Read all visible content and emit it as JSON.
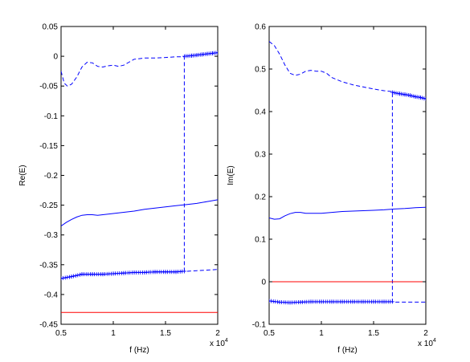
{
  "chart_data": [
    {
      "type": "line",
      "xlabel": "f (Hz)",
      "ylabel": "Re(E)",
      "x_exponent": "x 10^4",
      "xlim": [
        5000,
        20000
      ],
      "ylim": [
        -0.45,
        0.05
      ],
      "xticks": [
        0.5,
        1,
        1.5,
        2
      ],
      "yticks": [
        -0.45,
        -0.4,
        -0.35,
        -0.3,
        -0.25,
        -0.2,
        -0.15,
        -0.1,
        -0.05,
        0,
        0.05
      ],
      "ytick_labels": [
        "-0.45",
        "-0.4",
        "-0.35",
        "-0.3",
        "-0.25",
        "-0.2",
        "-0.15",
        "-0.1",
        "-0.05",
        "0",
        "0.05"
      ],
      "grid": false,
      "series": [
        {
          "style": "solid",
          "color": "#0000ff",
          "x": [
            5000,
            5500,
            6000,
            6500,
            7000,
            7500,
            8000,
            8500,
            9000,
            10000,
            11000,
            12000,
            13000,
            14000,
            15000,
            16000,
            17000,
            18000,
            19000,
            20000
          ],
          "y": [
            -0.285,
            -0.279,
            -0.274,
            -0.27,
            -0.267,
            -0.266,
            -0.266,
            -0.267,
            -0.266,
            -0.264,
            -0.262,
            -0.26,
            -0.257,
            -0.255,
            -0.253,
            -0.251,
            -0.249,
            -0.247,
            -0.244,
            -0.241
          ]
        },
        {
          "style": "dashed",
          "color": "#0000ff",
          "x": [
            5000,
            5300,
            5600,
            6000,
            6500,
            7000,
            7500,
            8000,
            8500,
            9000,
            9500,
            10000,
            10500,
            11000,
            11500,
            12000,
            12500,
            13000,
            14000,
            15000,
            16000,
            16800,
            16800,
            17000,
            18000,
            19000,
            20000
          ],
          "y": [
            -0.025,
            -0.045,
            -0.05,
            -0.047,
            -0.035,
            -0.018,
            -0.01,
            -0.011,
            -0.017,
            -0.018,
            -0.016,
            -0.015,
            -0.017,
            -0.015,
            -0.01,
            -0.005,
            -0.004,
            -0.003,
            -0.003,
            -0.002,
            -0.001,
            -0.001,
            -0.361,
            -0.361,
            -0.36,
            -0.359,
            -0.358
          ]
        },
        {
          "style": "solid-marker",
          "marker": "+",
          "color": "#0000ff",
          "x": [
            5000,
            6000,
            7000,
            8000,
            9000,
            10000,
            11000,
            12000,
            13000,
            14000,
            15000,
            16000,
            16800
          ],
          "y": [
            -0.373,
            -0.37,
            -0.366,
            -0.366,
            -0.366,
            -0.365,
            -0.364,
            -0.363,
            -0.363,
            -0.362,
            -0.362,
            -0.362,
            -0.361
          ]
        },
        {
          "style": "solid-marker",
          "marker": "+",
          "color": "#0000ff",
          "x": [
            16800,
            17500,
            18000,
            18500,
            19000,
            19500,
            20000
          ],
          "y": [
            0.0,
            0.001,
            0.002,
            0.003,
            0.004,
            0.005,
            0.006
          ]
        },
        {
          "style": "solid",
          "color": "#ff0000",
          "x": [
            5000,
            20000
          ],
          "y": [
            -0.43,
            -0.43
          ]
        }
      ]
    },
    {
      "type": "line",
      "xlabel": "f (Hz)",
      "ylabel": "Im(E)",
      "x_exponent": "x 10^4",
      "xlim": [
        5000,
        20000
      ],
      "ylim": [
        -0.1,
        0.6
      ],
      "xticks": [
        0.5,
        1,
        1.5,
        2
      ],
      "yticks": [
        -0.1,
        0,
        0.1,
        0.2,
        0.3,
        0.4,
        0.5,
        0.6
      ],
      "ytick_labels": [
        "-0.1",
        "0",
        "0.1",
        "0.2",
        "0.3",
        "0.4",
        "0.5",
        "0.6"
      ],
      "grid": false,
      "series": [
        {
          "style": "dashed",
          "color": "#0000ff",
          "x": [
            5000,
            5500,
            6000,
            6500,
            7000,
            7500,
            8000,
            8500,
            9000,
            9500,
            10000,
            10500,
            11000,
            12000,
            13000,
            14000,
            15000,
            16000,
            16800,
            16800,
            17000,
            18000,
            19000,
            20000
          ],
          "y": [
            0.565,
            0.555,
            0.535,
            0.51,
            0.49,
            0.485,
            0.488,
            0.495,
            0.497,
            0.495,
            0.495,
            0.49,
            0.48,
            0.47,
            0.463,
            0.458,
            0.453,
            0.449,
            0.447,
            -0.048,
            -0.048,
            -0.048,
            -0.048,
            -0.048
          ]
        },
        {
          "style": "solid",
          "color": "#0000ff",
          "x": [
            5000,
            5500,
            6000,
            6500,
            7000,
            7500,
            8000,
            8500,
            9000,
            10000,
            11000,
            12000,
            13000,
            14000,
            15000,
            16000,
            17000,
            18000,
            19000,
            20000
          ],
          "y": [
            0.15,
            0.147,
            0.148,
            0.155,
            0.16,
            0.163,
            0.163,
            0.161,
            0.161,
            0.161,
            0.163,
            0.165,
            0.166,
            0.167,
            0.168,
            0.169,
            0.171,
            0.172,
            0.174,
            0.175
          ]
        },
        {
          "style": "solid-marker",
          "marker": "+",
          "color": "#0000ff",
          "x": [
            16800,
            17500,
            18000,
            18500,
            19000,
            19500,
            20000
          ],
          "y": [
            0.445,
            0.442,
            0.44,
            0.438,
            0.435,
            0.433,
            0.43
          ]
        },
        {
          "style": "solid-marker",
          "marker": "+",
          "color": "#0000ff",
          "x": [
            5000,
            6000,
            7000,
            8000,
            9000,
            10000,
            11000,
            12000,
            13000,
            14000,
            15000,
            16000,
            16800
          ],
          "y": [
            -0.045,
            -0.048,
            -0.049,
            -0.048,
            -0.047,
            -0.047,
            -0.047,
            -0.047,
            -0.047,
            -0.047,
            -0.047,
            -0.047,
            -0.047
          ]
        },
        {
          "style": "solid",
          "color": "#ff0000",
          "x": [
            5000,
            20000
          ],
          "y": [
            0.0,
            0.0
          ]
        }
      ]
    }
  ]
}
